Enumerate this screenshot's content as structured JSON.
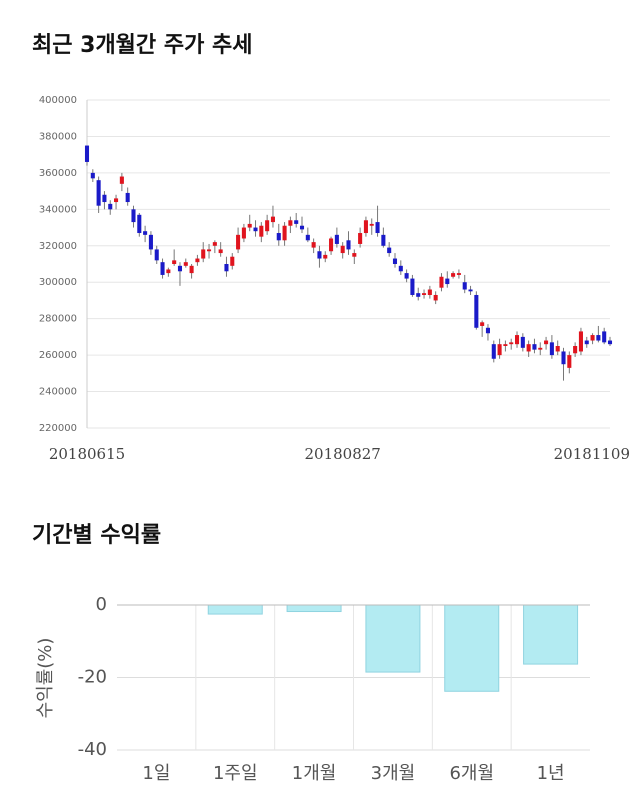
{
  "chart_data": [
    {
      "type": "candlestick",
      "title": "최근 3개월간 주가 추세",
      "categories": [
        "20180615",
        null,
        null,
        null,
        null,
        null,
        null,
        null,
        null,
        null,
        null,
        null,
        null,
        null,
        null,
        null,
        null,
        null,
        null,
        null,
        null,
        null,
        null,
        null,
        null,
        null,
        null,
        null,
        null,
        null,
        null,
        null,
        null,
        null,
        null,
        null,
        null,
        null,
        null,
        null,
        null,
        null,
        null,
        null,
        "20180827",
        null,
        null,
        null,
        null,
        null,
        null,
        null,
        null,
        null,
        null,
        null,
        null,
        null,
        null,
        null,
        null,
        null,
        null,
        null,
        null,
        null,
        null,
        null,
        null,
        null,
        null,
        null,
        null,
        null,
        null,
        null,
        null,
        null,
        null,
        null,
        null,
        null,
        null,
        null,
        null,
        null,
        null,
        null,
        null,
        null,
        "20181109"
      ],
      "open": [
        375000,
        360000,
        356000,
        348000,
        343000,
        344000,
        354000,
        349000,
        340000,
        337000,
        328000,
        326000,
        318000,
        311000,
        305000,
        310000,
        309000,
        309000,
        305000,
        311000,
        313000,
        317000,
        320000,
        316000,
        310000,
        309000,
        318000,
        324000,
        330000,
        330000,
        325000,
        328000,
        333000,
        327000,
        323000,
        331000,
        334000,
        331000,
        326000,
        319000,
        317000,
        313000,
        317000,
        326000,
        316000,
        323000,
        314000,
        321000,
        327000,
        331000,
        333000,
        326000,
        319000,
        313000,
        309000,
        305000,
        302000,
        294000,
        293000,
        293000,
        290000,
        297000,
        302000,
        303000,
        304000,
        300000,
        296000,
        293000,
        276000,
        275000,
        266000,
        260000,
        265000,
        266000,
        266000,
        270000,
        262000,
        266000,
        263000,
        266000,
        267000,
        262000,
        262000,
        253000,
        261000,
        262000,
        268000,
        268000,
        271000,
        273000,
        268000
      ],
      "high": [
        375000,
        362000,
        358000,
        350000,
        345000,
        348000,
        360000,
        352000,
        342000,
        338000,
        331000,
        328000,
        320000,
        313000,
        308000,
        318000,
        311000,
        313000,
        310000,
        315000,
        322000,
        321000,
        323000,
        322000,
        314000,
        316000,
        330000,
        332000,
        337000,
        334000,
        333000,
        337000,
        342000,
        332000,
        333000,
        336000,
        338000,
        336000,
        330000,
        324000,
        320000,
        317000,
        325000,
        330000,
        322000,
        328000,
        318000,
        330000,
        336000,
        335000,
        342000,
        330000,
        322000,
        316000,
        312000,
        307000,
        304000,
        297000,
        296000,
        298000,
        295000,
        305000,
        306000,
        306000,
        307000,
        304000,
        298000,
        295000,
        279000,
        277000,
        268000,
        269000,
        268000,
        269000,
        273000,
        272000,
        268000,
        269000,
        267000,
        270000,
        271000,
        268000,
        264000,
        262000,
        267000,
        275000,
        270000,
        272000,
        276000,
        275000,
        270000
      ],
      "low": [
        364000,
        355000,
        338000,
        340000,
        337000,
        340000,
        350000,
        342000,
        330000,
        325000,
        322000,
        315000,
        310000,
        302000,
        303000,
        309000,
        298000,
        308000,
        302000,
        309000,
        311000,
        313000,
        316000,
        314000,
        303000,
        307000,
        316000,
        322000,
        328000,
        325000,
        322000,
        326000,
        330000,
        320000,
        320000,
        327000,
        330000,
        327000,
        322000,
        316000,
        308000,
        311000,
        315000,
        319000,
        313000,
        315000,
        310000,
        319000,
        325000,
        326000,
        325000,
        319000,
        314000,
        308000,
        304000,
        300000,
        292000,
        290000,
        291000,
        291000,
        288000,
        295000,
        297000,
        302000,
        302000,
        294000,
        293000,
        274000,
        270000,
        268000,
        256000,
        258000,
        262000,
        263000,
        264000,
        262000,
        259000,
        261000,
        260000,
        263000,
        258000,
        260000,
        246000,
        250000,
        259000,
        260000,
        264000,
        266000,
        267000,
        266000,
        265000
      ],
      "close": [
        366000,
        357000,
        342000,
        344000,
        340000,
        346000,
        358000,
        344000,
        333000,
        327000,
        326000,
        318000,
        312000,
        304000,
        307000,
        312000,
        306000,
        311000,
        309000,
        313000,
        318000,
        318000,
        322000,
        318000,
        306000,
        314000,
        326000,
        330000,
        332000,
        328000,
        331000,
        334000,
        336000,
        323000,
        331000,
        334000,
        332000,
        329000,
        323000,
        322000,
        313000,
        315000,
        324000,
        321000,
        320000,
        318000,
        316000,
        327000,
        334000,
        332000,
        327000,
        320000,
        316000,
        310000,
        306000,
        302000,
        293000,
        292000,
        294000,
        296000,
        293000,
        303000,
        299000,
        305000,
        305000,
        296000,
        295000,
        275000,
        278000,
        272000,
        258000,
        266000,
        266000,
        267000,
        271000,
        264000,
        266000,
        263000,
        264000,
        268000,
        260000,
        265000,
        255000,
        260000,
        265000,
        273000,
        266000,
        271000,
        268000,
        267000,
        266000
      ],
      "up_color": "#e0141e",
      "down_color": "#1a1ac8",
      "ylim": [
        220000,
        400000
      ],
      "yticks": [
        220000,
        240000,
        260000,
        280000,
        300000,
        320000,
        340000,
        360000,
        380000,
        400000
      ],
      "grid": true
    },
    {
      "type": "bar",
      "title": "기간별 수익률",
      "y_label": "수익률(%)",
      "categories": [
        "1일",
        "1주일",
        "1개월",
        "3개월",
        "6개월",
        "1년"
      ],
      "values": [
        0,
        -2.5,
        -1.8,
        -18.5,
        -23.8,
        -16.3
      ],
      "color": "#b3ebf2",
      "ylim": [
        -40,
        0
      ],
      "yticks": [
        0,
        -20,
        -40
      ],
      "grid": true
    }
  ]
}
